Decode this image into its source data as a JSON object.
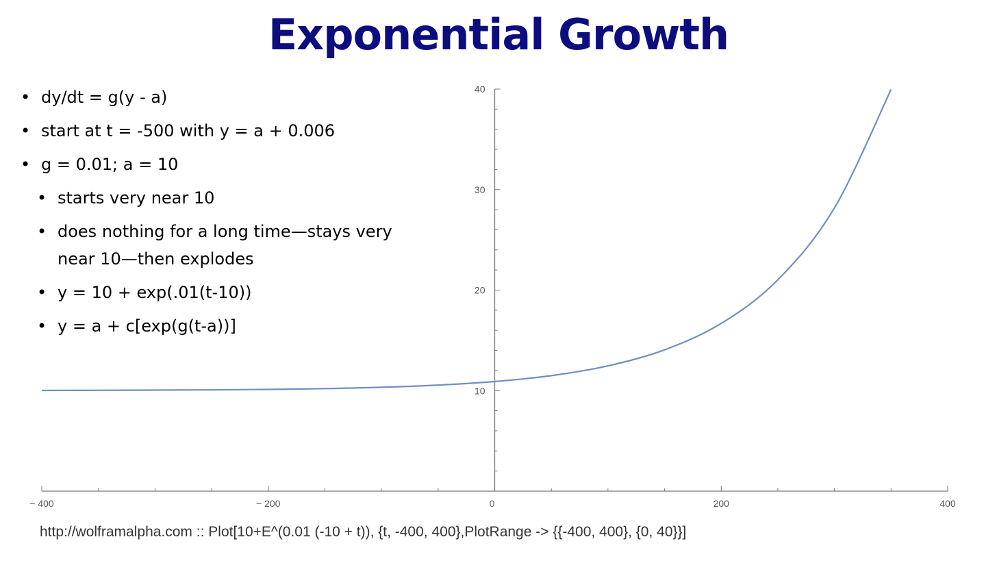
{
  "slide": {
    "title": "Exponential Growth",
    "bullets": [
      {
        "level": 1,
        "text": "dy/dt = g(y - a)"
      },
      {
        "level": 1,
        "text": "start at t = -500 with y = a + 0.006"
      },
      {
        "level": 1,
        "text": "g = 0.01; a = 10"
      },
      {
        "level": 2,
        "text": "starts very near 10"
      },
      {
        "level": 2,
        "text": "does nothing for a long time—stays very near 10—then explodes"
      },
      {
        "level": 2,
        "text": "y = 10 + exp(.01(t-10))"
      },
      {
        "level": 2,
        "text": "y = a + c[exp(g(t-a))]"
      }
    ],
    "caption": "http://wolframalpha.com :: Plot[10+E^(0.01 (-10 + t)), {t, -400, 400},PlotRange -> {{-400, 400}, {0, 40}}]"
  },
  "chart_data": {
    "type": "line",
    "title": "",
    "xlabel": "",
    "ylabel": "",
    "xlim": [
      -400,
      400
    ],
    "ylim": [
      0,
      40
    ],
    "grid": false,
    "x_ticks": [
      -400,
      -200,
      0,
      200,
      400
    ],
    "x_tick_labels": [
      "− 400",
      "− 200",
      "0",
      "200",
      "400"
    ],
    "y_ticks": [
      10,
      20,
      30,
      40
    ],
    "y_tick_labels": [
      "10",
      "20",
      "30",
      "40"
    ],
    "line_color": "#6f8fbf",
    "series": [
      {
        "x": [
          -400,
          -350,
          -300,
          -250,
          -200,
          -150,
          -100,
          -50,
          0,
          50,
          100,
          150,
          200,
          250,
          300,
          350
        ],
        "y": [
          10.02,
          10.03,
          10.05,
          10.07,
          10.12,
          10.2,
          10.33,
          10.55,
          10.9,
          11.49,
          12.46,
          14.06,
          16.69,
          21.02,
          28.17,
          39.96
        ]
      }
    ]
  }
}
